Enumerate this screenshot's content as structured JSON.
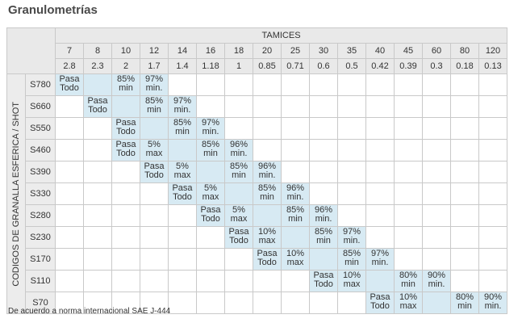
{
  "title": "Granulometrías",
  "table": {
    "group_header": "TAMICES",
    "sieves": [
      7,
      8,
      10,
      12,
      14,
      16,
      18,
      20,
      25,
      30,
      35,
      40,
      45,
      60,
      80,
      120
    ],
    "mm": [
      2.8,
      2.3,
      2,
      1.7,
      1.4,
      1.18,
      1,
      0.85,
      0.71,
      0.6,
      0.5,
      0.42,
      0.39,
      0.3,
      0.18,
      0.13
    ],
    "row_axis_label": "CODIGOS DE GRANALLA ESFERICA / SHOT",
    "rows": [
      {
        "code": "S780",
        "cells": [
          "Pasa Todo",
          "",
          "85% min",
          "97% min.",
          null,
          null,
          null,
          null,
          null,
          null,
          null,
          null,
          null,
          null,
          null,
          null
        ]
      },
      {
        "code": "S660",
        "cells": [
          null,
          "Pasa Todo",
          "",
          "85% min",
          "97% min.",
          null,
          null,
          null,
          null,
          null,
          null,
          null,
          null,
          null,
          null,
          null
        ]
      },
      {
        "code": "S550",
        "cells": [
          null,
          null,
          "Pasa Todo",
          "",
          "85% min",
          "97% min.",
          null,
          null,
          null,
          null,
          null,
          null,
          null,
          null,
          null,
          null
        ]
      },
      {
        "code": "S460",
        "cells": [
          null,
          null,
          "Pasa Todo",
          "5% max",
          "",
          "85% min",
          "96% min.",
          null,
          null,
          null,
          null,
          null,
          null,
          null,
          null,
          null
        ]
      },
      {
        "code": "S390",
        "cells": [
          null,
          null,
          null,
          "Pasa Todo",
          "5% max",
          "",
          "85% min",
          "96% min.",
          null,
          null,
          null,
          null,
          null,
          null,
          null,
          null
        ]
      },
      {
        "code": "S330",
        "cells": [
          null,
          null,
          null,
          null,
          "Pasa Todo",
          "5% max",
          "",
          "85% min",
          "96% min.",
          null,
          null,
          null,
          null,
          null,
          null,
          null
        ]
      },
      {
        "code": "S280",
        "cells": [
          null,
          null,
          null,
          null,
          null,
          "Pasa Todo",
          "5% max",
          "",
          "85% min",
          "96% min.",
          null,
          null,
          null,
          null,
          null,
          null
        ]
      },
      {
        "code": "S230",
        "cells": [
          null,
          null,
          null,
          null,
          null,
          null,
          "Pasa Todo",
          "10% max",
          "",
          "85% min",
          "97% min.",
          null,
          null,
          null,
          null,
          null
        ]
      },
      {
        "code": "S170",
        "cells": [
          null,
          null,
          null,
          null,
          null,
          null,
          null,
          "Pasa Todo",
          "10% max",
          "",
          "85% min",
          "97% min.",
          null,
          null,
          null,
          null
        ]
      },
      {
        "code": "S110",
        "cells": [
          null,
          null,
          null,
          null,
          null,
          null,
          null,
          null,
          null,
          "Pasa Todo",
          "10% max",
          "",
          "80% min",
          "90% min.",
          null,
          null
        ]
      },
      {
        "code": "S70",
        "cells": [
          null,
          null,
          null,
          null,
          null,
          null,
          null,
          null,
          null,
          null,
          null,
          "Pasa Todo",
          "10% max",
          "",
          "80% min",
          "90% min."
        ]
      }
    ]
  },
  "footnote": "De acuerdo a norma internacional SAE J-444"
}
